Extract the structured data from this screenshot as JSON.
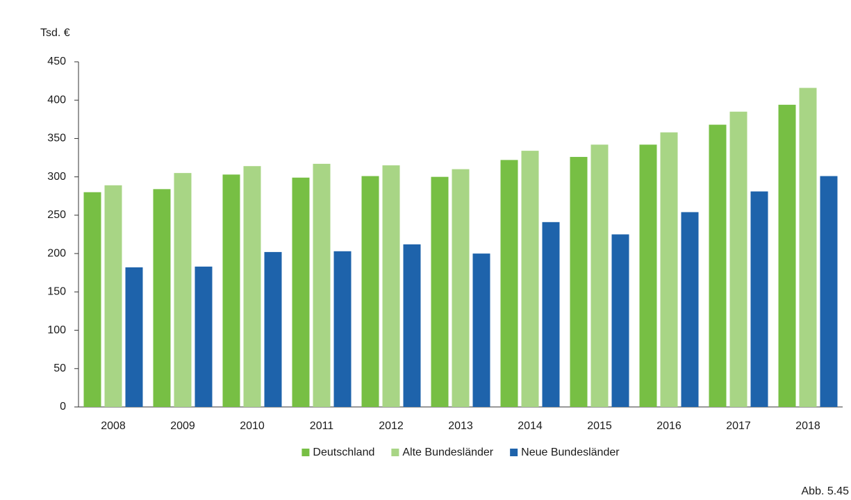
{
  "chart_data": {
    "type": "bar",
    "y_label": "Tsd. €",
    "annotation": "Abb. 5.45",
    "categories": [
      "2008",
      "2009",
      "2010",
      "2011",
      "2012",
      "2013",
      "2014",
      "2015",
      "2016",
      "2017",
      "2018"
    ],
    "series": [
      {
        "name": "Deutschland",
        "color": "#77bf44",
        "values": [
          280,
          284,
          303,
          299,
          301,
          300,
          322,
          326,
          342,
          368,
          394
        ]
      },
      {
        "name": "Alte Bundesländer",
        "color": "#a8d585",
        "values": [
          289,
          305,
          314,
          317,
          315,
          310,
          334,
          342,
          358,
          385,
          416
        ]
      },
      {
        "name": "Neue Bundesländer",
        "color": "#1e63ab",
        "values": [
          182,
          183,
          202,
          203,
          212,
          200,
          241,
          225,
          254,
          281,
          301
        ]
      }
    ],
    "ylim": [
      0,
      450
    ],
    "yticks": [
      0,
      50,
      100,
      150,
      200,
      250,
      300,
      350,
      400,
      450
    ],
    "grid": false,
    "legend": "bottom"
  }
}
